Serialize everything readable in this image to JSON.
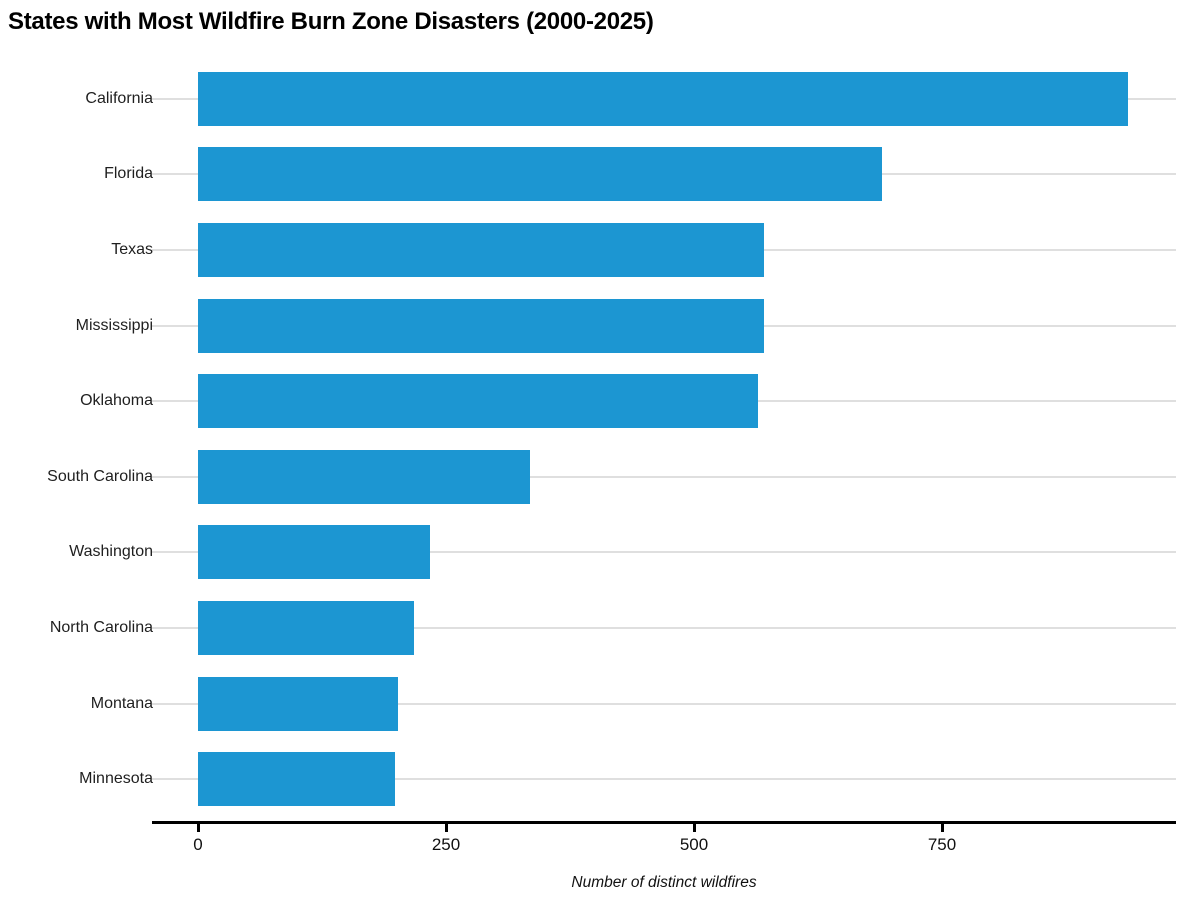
{
  "chart_data": {
    "type": "bar",
    "orientation": "horizontal",
    "title": "States with Most Wildfire Burn Zone Disasters (2000-2025)",
    "xlabel": "Number of distinct wildfires",
    "ylabel": "",
    "categories": [
      "California",
      "Florida",
      "Texas",
      "Mississippi",
      "Oklahoma",
      "South Carolina",
      "Washington",
      "North Carolina",
      "Montana",
      "Minnesota"
    ],
    "values": [
      937,
      690,
      571,
      571,
      565,
      335,
      234,
      218,
      202,
      199
    ],
    "xticks": [
      0,
      250,
      500,
      750
    ],
    "xlim": [
      -47,
      986
    ],
    "grid": "horizontal-category-lines-only",
    "legend": "none",
    "colors": {
      "bar": "#1c96d2",
      "gridline": "#dfdfdf",
      "axis_line": "#000000",
      "axis_text": "#111111",
      "category_text": "#1f1f1f",
      "title_text": "#000000",
      "background": "#ffffff"
    }
  }
}
